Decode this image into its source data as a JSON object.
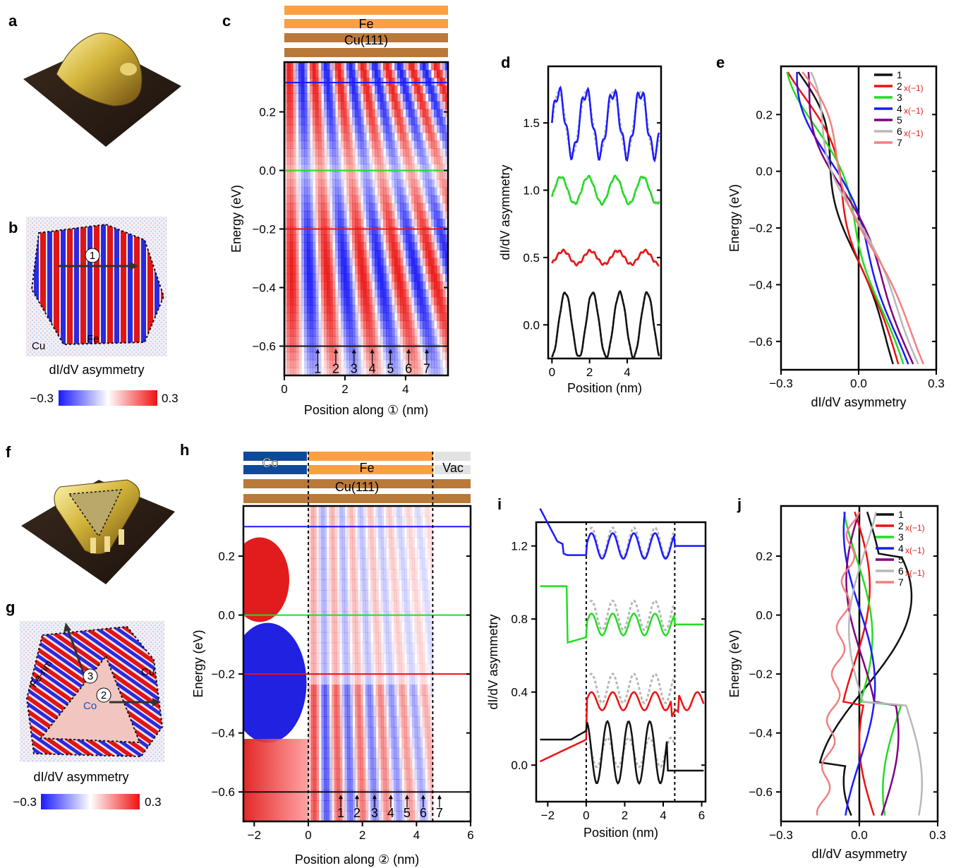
{
  "panels": [
    "a",
    "b",
    "c",
    "d",
    "e",
    "f",
    "g",
    "h",
    "i",
    "j"
  ],
  "images": {
    "b_labels": {
      "cu": "Cu",
      "fe": "Fe",
      "path": "1"
    },
    "g_labels": {
      "cu": "Cu",
      "co": "Co",
      "rim": "Fe-rim",
      "path2": "2",
      "path3": "3"
    },
    "colorbar": {
      "title": "dI/dV asymmetry",
      "min": "−0.3",
      "max": "0.3"
    }
  },
  "layers_c": {
    "top": "Fe",
    "bottom": "Cu(111)"
  },
  "layers_h": {
    "co": "Co",
    "fe": "Fe",
    "vac": "Vac",
    "bottom": "Cu(111)"
  },
  "colors": {
    "blue": "#1a1aff",
    "green": "#22dd22",
    "red": "#ee1111",
    "black": "#111111",
    "purple": "#800080",
    "gray": "#b8b8b8",
    "pink": "#f28080",
    "orange": "#f9a040",
    "brown": "#b8793a",
    "navy": "#0d4a9c"
  },
  "chart_data": [
    {
      "panel": "c",
      "type": "heatmap",
      "xlabel": "Position along ① (nm)",
      "ylabel": "Energy (eV)",
      "xlim": [
        0,
        5.4
      ],
      "ylim": [
        -0.7,
        0.37
      ],
      "xticks": [
        "0",
        "2",
        "4"
      ],
      "yticks": [
        "0.2",
        "0.0",
        "−0.2",
        "−0.4",
        "−0.6"
      ],
      "lines": [
        {
          "energy": 0.3,
          "color": "blue"
        },
        {
          "energy": 0.0,
          "color": "green"
        },
        {
          "energy": -0.2,
          "color": "red"
        },
        {
          "energy": -0.6,
          "color": "black"
        }
      ],
      "markers": [
        {
          "label": "1",
          "x": 1.1
        },
        {
          "label": "2",
          "x": 1.7
        },
        {
          "label": "3",
          "x": 2.3
        },
        {
          "label": "4",
          "x": 2.9
        },
        {
          "label": "5",
          "x": 3.5
        },
        {
          "label": "6",
          "x": 4.1
        },
        {
          "label": "7",
          "x": 4.7
        }
      ]
    },
    {
      "panel": "d",
      "type": "line",
      "xlabel": "Position (nm)",
      "ylabel": "dI/dV asymmetry",
      "xlim": [
        -0.2,
        5.8
      ],
      "ylim": [
        -0.25,
        1.92
      ],
      "xticks": [
        "0",
        "2",
        "4"
      ],
      "yticks": [
        "0.0",
        "0.5",
        "1.0",
        "1.5"
      ],
      "series": [
        {
          "color": "blue",
          "offset": 1.5,
          "amp": 0.23
        },
        {
          "color": "green",
          "offset": 1.0,
          "amp": 0.1
        },
        {
          "color": "red",
          "offset": 0.5,
          "amp": 0.05
        },
        {
          "color": "black",
          "offset": 0.0,
          "amp": 0.24
        }
      ]
    },
    {
      "panel": "e",
      "type": "line",
      "xlabel": "dI/dV asymmetry",
      "ylabel": "Energy (eV)",
      "xlim": [
        -0.3,
        0.3
      ],
      "ylim": [
        -0.7,
        0.37
      ],
      "xticks": [
        "−0.3",
        "0.0",
        "0.3"
      ],
      "yticks": [
        "0.2",
        "0.0",
        "−0.2",
        "−0.4",
        "−0.6"
      ],
      "legend": [
        {
          "label": "1",
          "color": "black",
          "note": ""
        },
        {
          "label": "2",
          "color": "red",
          "note": "x(−1)"
        },
        {
          "label": "3",
          "color": "green",
          "note": ""
        },
        {
          "label": "4",
          "color": "blue",
          "note": "x(−1)"
        },
        {
          "label": "5",
          "color": "purple",
          "note": ""
        },
        {
          "label": "6",
          "color": "gray",
          "note": "x(−1)"
        },
        {
          "label": "7",
          "color": "pink",
          "note": ""
        }
      ]
    },
    {
      "panel": "h",
      "type": "heatmap",
      "xlabel": "Position along ② (nm)",
      "ylabel": "Energy (eV)",
      "xlim": [
        -2.4,
        6.0
      ],
      "ylim": [
        -0.7,
        0.37
      ],
      "xticks": [
        "−2",
        "0",
        "2",
        "4",
        "6"
      ],
      "yticks": [
        "0.2",
        "0.0",
        "−0.2",
        "−0.4",
        "−0.6"
      ],
      "boundaries": [
        0,
        4.6
      ],
      "markers": [
        {
          "label": "1",
          "x": 1.2
        },
        {
          "label": "2",
          "x": 1.8
        },
        {
          "label": "3",
          "x": 2.45
        },
        {
          "label": "4",
          "x": 3.05
        },
        {
          "label": "5",
          "x": 3.65
        },
        {
          "label": "6",
          "x": 4.25
        },
        {
          "label": "7",
          "x": 4.85
        }
      ]
    },
    {
      "panel": "i",
      "type": "line",
      "xlabel": "Position (nm)",
      "ylabel": "dI/dV asymmetry",
      "xlim": [
        -2.6,
        6.2
      ],
      "ylim": [
        -0.2,
        1.33
      ],
      "xticks": [
        "−2",
        "0",
        "2",
        "4",
        "6"
      ],
      "yticks": [
        "0.0",
        "0.4",
        "0.8",
        "1.2"
      ],
      "boundaries": [
        0,
        4.6
      ],
      "series": [
        {
          "color": "blue",
          "offset": 1.2
        },
        {
          "color": "green",
          "offset": 0.8
        },
        {
          "color": "red",
          "offset": 0.4
        },
        {
          "color": "black",
          "offset": 0.0
        }
      ]
    },
    {
      "panel": "j",
      "type": "line",
      "xlabel": "dI/dV asymmetry",
      "ylabel": "Energy (eV)",
      "xlim": [
        -0.3,
        0.3
      ],
      "ylim": [
        -0.7,
        0.37
      ],
      "xticks": [
        "−0.3",
        "0.0",
        "0.3"
      ],
      "yticks": [
        "0.2",
        "0.0",
        "−0.2",
        "−0.4",
        "−0.6"
      ],
      "legend": [
        {
          "label": "1",
          "color": "black",
          "note": ""
        },
        {
          "label": "2",
          "color": "red",
          "note": "x(−1)"
        },
        {
          "label": "3",
          "color": "green",
          "note": ""
        },
        {
          "label": "4",
          "color": "blue",
          "note": "x(−1)"
        },
        {
          "label": "5",
          "color": "purple",
          "note": ""
        },
        {
          "label": "6",
          "color": "gray",
          "note": "x(−1)"
        },
        {
          "label": "7",
          "color": "pink",
          "note": ""
        }
      ]
    }
  ]
}
